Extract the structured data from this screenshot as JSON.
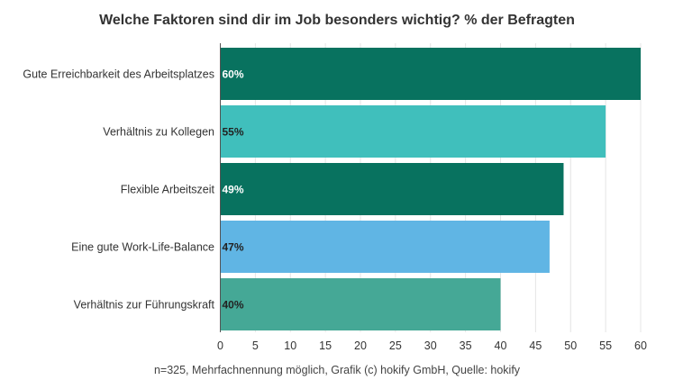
{
  "chart_data": {
    "type": "bar",
    "orientation": "horizontal",
    "title": "Welche Faktoren sind dir im Job besonders wichtig? % der Befragten",
    "categories": [
      "Gute Erreichbarkeit des Arbeitsplatzes",
      "Verhältnis zu Kollegen",
      "Flexible Arbeitszeit",
      "Eine gute Work-Life-Balance",
      "Verhältnis zur Führungskraft"
    ],
    "values": [
      60,
      55,
      49,
      47,
      40
    ],
    "data_labels": [
      "60%",
      "55%",
      "49%",
      "47%",
      "40%"
    ],
    "bar_colors": [
      "#08725f",
      "#40bfbc",
      "#08725f",
      "#60b5e4",
      "#45a896"
    ],
    "label_colors": [
      "#ffffff",
      "#222222",
      "#ffffff",
      "#222222",
      "#222222"
    ],
    "xlim": [
      0,
      60
    ],
    "xticks": [
      0,
      5,
      10,
      15,
      20,
      25,
      30,
      35,
      40,
      45,
      50,
      55,
      60
    ],
    "grid": true,
    "xlabel": "",
    "ylabel": "",
    "footnote": "n=325, Mehrfachnennung möglich, Grafik (c) hokify GmbH, Quelle: hokify"
  }
}
